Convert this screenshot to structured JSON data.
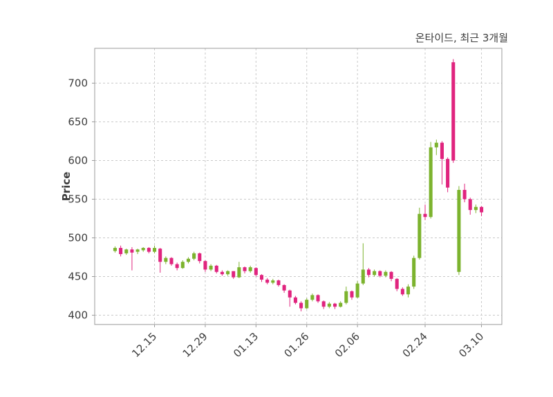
{
  "chart": {
    "title": "온타이드, 최근 3개월",
    "ylabel": "Price"
  },
  "chart_data": {
    "type": "candlestick",
    "title": "온타이드, 최근 3개월",
    "ylabel": "Price",
    "xlabel": "",
    "grid": true,
    "grid_style": "dashed",
    "ylim": [
      388,
      745
    ],
    "yticks": [
      400,
      450,
      500,
      550,
      600,
      650,
      700
    ],
    "xticks": [
      {
        "label": "12.15",
        "index": 7
      },
      {
        "label": "12.29",
        "index": 16
      },
      {
        "label": "01.13",
        "index": 25
      },
      {
        "label": "01.26",
        "index": 34
      },
      {
        "label": "02.06",
        "index": 43
      },
      {
        "label": "02.24",
        "index": 55
      },
      {
        "label": "03.10",
        "index": 65
      }
    ],
    "colors": {
      "up": "#7cb32e",
      "down": "#e0247e",
      "grid": "#c9c9c9",
      "axis": "#9a9a9a",
      "text": "#3d3d3d"
    },
    "columns": [
      "date",
      "open",
      "high",
      "low",
      "close"
    ],
    "candles": [
      [
        "12.04",
        483,
        489,
        481,
        487
      ],
      [
        "12.05",
        487,
        490,
        476,
        479
      ],
      [
        "12.08",
        480,
        486,
        478,
        485
      ],
      [
        "12.09",
        485,
        488,
        458,
        481
      ],
      [
        "12.10",
        482,
        486,
        479,
        485
      ],
      [
        "12.11",
        484,
        488,
        482,
        487
      ],
      [
        "12.12",
        487,
        488,
        480,
        482
      ],
      [
        "12.15",
        482,
        490,
        480,
        487
      ],
      [
        "12.16",
        486,
        487,
        455,
        469
      ],
      [
        "12.17",
        469,
        476,
        466,
        474
      ],
      [
        "12.18",
        474,
        475,
        464,
        466
      ],
      [
        "12.19",
        466,
        468,
        458,
        461
      ],
      [
        "12.22",
        461,
        471,
        460,
        469
      ],
      [
        "12.23",
        469,
        475,
        467,
        473
      ],
      [
        "12.24",
        473,
        482,
        471,
        480
      ],
      [
        "12.26",
        480,
        481,
        467,
        470
      ],
      [
        "12.29",
        470,
        471,
        456,
        459
      ],
      [
        "12.30",
        459,
        466,
        457,
        464
      ],
      [
        "01.02",
        464,
        465,
        454,
        456
      ],
      [
        "01.05",
        456,
        458,
        451,
        453
      ],
      [
        "01.06",
        453,
        458,
        451,
        457
      ],
      [
        "01.07",
        457,
        457,
        447,
        449
      ],
      [
        "01.08",
        449,
        469,
        448,
        462
      ],
      [
        "01.09",
        462,
        463,
        454,
        457
      ],
      [
        "01.12",
        457,
        464,
        455,
        462
      ],
      [
        "01.13",
        461,
        462,
        450,
        452
      ],
      [
        "01.14",
        452,
        453,
        443,
        446
      ],
      [
        "01.15",
        446,
        448,
        440,
        442
      ],
      [
        "01.16",
        442,
        447,
        440,
        445
      ],
      [
        "01.19",
        445,
        446,
        437,
        439
      ],
      [
        "01.20",
        439,
        440,
        429,
        432
      ],
      [
        "01.21",
        432,
        433,
        411,
        423
      ],
      [
        "01.22",
        423,
        425,
        414,
        416
      ],
      [
        "01.23",
        416,
        418,
        405,
        409
      ],
      [
        "01.26",
        409,
        422,
        408,
        420
      ],
      [
        "01.27",
        420,
        428,
        418,
        426
      ],
      [
        "01.28",
        426,
        427,
        416,
        418
      ],
      [
        "01.29",
        418,
        419,
        408,
        411
      ],
      [
        "01.30",
        411,
        417,
        409,
        415
      ],
      [
        "02.02",
        415,
        416,
        408,
        411
      ],
      [
        "02.03",
        411,
        418,
        410,
        416
      ],
      [
        "02.04",
        416,
        437,
        414,
        431
      ],
      [
        "02.05",
        431,
        432,
        420,
        423
      ],
      [
        "02.06",
        423,
        444,
        422,
        441
      ],
      [
        "02.09",
        441,
        493,
        439,
        459
      ],
      [
        "02.10",
        459,
        461,
        449,
        452
      ],
      [
        "02.11",
        452,
        459,
        450,
        457
      ],
      [
        "02.12",
        457,
        458,
        449,
        451
      ],
      [
        "02.13",
        451,
        458,
        449,
        456
      ],
      [
        "02.16",
        456,
        457,
        444,
        447
      ],
      [
        "02.17",
        447,
        448,
        431,
        434
      ],
      [
        "02.18",
        434,
        436,
        425,
        427
      ],
      [
        "02.19",
        427,
        440,
        423,
        437
      ],
      [
        "02.20",
        437,
        477,
        434,
        474
      ],
      [
        "02.23",
        474,
        539,
        472,
        531
      ],
      [
        "02.24",
        531,
        543,
        523,
        527
      ],
      [
        "02.25",
        527,
        624,
        525,
        617
      ],
      [
        "02.26",
        617,
        627,
        607,
        623
      ],
      [
        "02.27",
        623,
        625,
        569,
        602
      ],
      [
        "03.02",
        602,
        604,
        559,
        565
      ],
      [
        "03.03",
        727,
        731,
        597,
        600
      ],
      [
        "03.04",
        456,
        567,
        452,
        562
      ],
      [
        "03.05",
        562,
        570,
        546,
        550
      ],
      [
        "03.06",
        550,
        552,
        530,
        536
      ],
      [
        "03.09",
        536,
        543,
        532,
        540
      ],
      [
        "03.10",
        540,
        541,
        528,
        533
      ]
    ]
  }
}
